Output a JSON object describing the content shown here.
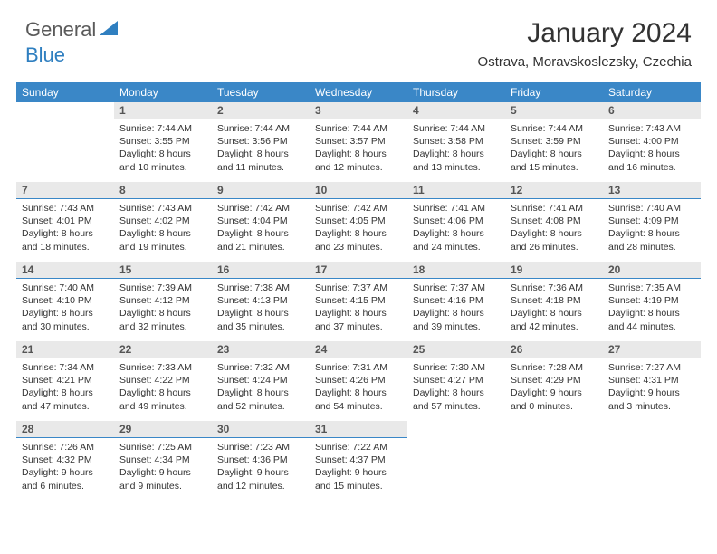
{
  "logo": {
    "text1": "General",
    "text2": "Blue"
  },
  "title": "January 2024",
  "location": "Ostrava, Moravskoslezsky, Czechia",
  "colors": {
    "header_bg": "#3a87c7",
    "header_text": "#ffffff",
    "daynum_bg": "#e9e9e9",
    "daynum_border": "#3a87c7",
    "page_bg": "#ffffff",
    "logo_gray": "#5a5a5a",
    "logo_blue": "#2f7fc0",
    "body_text": "#333333"
  },
  "weekdays": [
    "Sunday",
    "Monday",
    "Tuesday",
    "Wednesday",
    "Thursday",
    "Friday",
    "Saturday"
  ],
  "weeks": [
    [
      null,
      {
        "n": "1",
        "sr": "Sunrise: 7:44 AM",
        "ss": "Sunset: 3:55 PM",
        "d1": "Daylight: 8 hours",
        "d2": "and 10 minutes."
      },
      {
        "n": "2",
        "sr": "Sunrise: 7:44 AM",
        "ss": "Sunset: 3:56 PM",
        "d1": "Daylight: 8 hours",
        "d2": "and 11 minutes."
      },
      {
        "n": "3",
        "sr": "Sunrise: 7:44 AM",
        "ss": "Sunset: 3:57 PM",
        "d1": "Daylight: 8 hours",
        "d2": "and 12 minutes."
      },
      {
        "n": "4",
        "sr": "Sunrise: 7:44 AM",
        "ss": "Sunset: 3:58 PM",
        "d1": "Daylight: 8 hours",
        "d2": "and 13 minutes."
      },
      {
        "n": "5",
        "sr": "Sunrise: 7:44 AM",
        "ss": "Sunset: 3:59 PM",
        "d1": "Daylight: 8 hours",
        "d2": "and 15 minutes."
      },
      {
        "n": "6",
        "sr": "Sunrise: 7:43 AM",
        "ss": "Sunset: 4:00 PM",
        "d1": "Daylight: 8 hours",
        "d2": "and 16 minutes."
      }
    ],
    [
      {
        "n": "7",
        "sr": "Sunrise: 7:43 AM",
        "ss": "Sunset: 4:01 PM",
        "d1": "Daylight: 8 hours",
        "d2": "and 18 minutes."
      },
      {
        "n": "8",
        "sr": "Sunrise: 7:43 AM",
        "ss": "Sunset: 4:02 PM",
        "d1": "Daylight: 8 hours",
        "d2": "and 19 minutes."
      },
      {
        "n": "9",
        "sr": "Sunrise: 7:42 AM",
        "ss": "Sunset: 4:04 PM",
        "d1": "Daylight: 8 hours",
        "d2": "and 21 minutes."
      },
      {
        "n": "10",
        "sr": "Sunrise: 7:42 AM",
        "ss": "Sunset: 4:05 PM",
        "d1": "Daylight: 8 hours",
        "d2": "and 23 minutes."
      },
      {
        "n": "11",
        "sr": "Sunrise: 7:41 AM",
        "ss": "Sunset: 4:06 PM",
        "d1": "Daylight: 8 hours",
        "d2": "and 24 minutes."
      },
      {
        "n": "12",
        "sr": "Sunrise: 7:41 AM",
        "ss": "Sunset: 4:08 PM",
        "d1": "Daylight: 8 hours",
        "d2": "and 26 minutes."
      },
      {
        "n": "13",
        "sr": "Sunrise: 7:40 AM",
        "ss": "Sunset: 4:09 PM",
        "d1": "Daylight: 8 hours",
        "d2": "and 28 minutes."
      }
    ],
    [
      {
        "n": "14",
        "sr": "Sunrise: 7:40 AM",
        "ss": "Sunset: 4:10 PM",
        "d1": "Daylight: 8 hours",
        "d2": "and 30 minutes."
      },
      {
        "n": "15",
        "sr": "Sunrise: 7:39 AM",
        "ss": "Sunset: 4:12 PM",
        "d1": "Daylight: 8 hours",
        "d2": "and 32 minutes."
      },
      {
        "n": "16",
        "sr": "Sunrise: 7:38 AM",
        "ss": "Sunset: 4:13 PM",
        "d1": "Daylight: 8 hours",
        "d2": "and 35 minutes."
      },
      {
        "n": "17",
        "sr": "Sunrise: 7:37 AM",
        "ss": "Sunset: 4:15 PM",
        "d1": "Daylight: 8 hours",
        "d2": "and 37 minutes."
      },
      {
        "n": "18",
        "sr": "Sunrise: 7:37 AM",
        "ss": "Sunset: 4:16 PM",
        "d1": "Daylight: 8 hours",
        "d2": "and 39 minutes."
      },
      {
        "n": "19",
        "sr": "Sunrise: 7:36 AM",
        "ss": "Sunset: 4:18 PM",
        "d1": "Daylight: 8 hours",
        "d2": "and 42 minutes."
      },
      {
        "n": "20",
        "sr": "Sunrise: 7:35 AM",
        "ss": "Sunset: 4:19 PM",
        "d1": "Daylight: 8 hours",
        "d2": "and 44 minutes."
      }
    ],
    [
      {
        "n": "21",
        "sr": "Sunrise: 7:34 AM",
        "ss": "Sunset: 4:21 PM",
        "d1": "Daylight: 8 hours",
        "d2": "and 47 minutes."
      },
      {
        "n": "22",
        "sr": "Sunrise: 7:33 AM",
        "ss": "Sunset: 4:22 PM",
        "d1": "Daylight: 8 hours",
        "d2": "and 49 minutes."
      },
      {
        "n": "23",
        "sr": "Sunrise: 7:32 AM",
        "ss": "Sunset: 4:24 PM",
        "d1": "Daylight: 8 hours",
        "d2": "and 52 minutes."
      },
      {
        "n": "24",
        "sr": "Sunrise: 7:31 AM",
        "ss": "Sunset: 4:26 PM",
        "d1": "Daylight: 8 hours",
        "d2": "and 54 minutes."
      },
      {
        "n": "25",
        "sr": "Sunrise: 7:30 AM",
        "ss": "Sunset: 4:27 PM",
        "d1": "Daylight: 8 hours",
        "d2": "and 57 minutes."
      },
      {
        "n": "26",
        "sr": "Sunrise: 7:28 AM",
        "ss": "Sunset: 4:29 PM",
        "d1": "Daylight: 9 hours",
        "d2": "and 0 minutes."
      },
      {
        "n": "27",
        "sr": "Sunrise: 7:27 AM",
        "ss": "Sunset: 4:31 PM",
        "d1": "Daylight: 9 hours",
        "d2": "and 3 minutes."
      }
    ],
    [
      {
        "n": "28",
        "sr": "Sunrise: 7:26 AM",
        "ss": "Sunset: 4:32 PM",
        "d1": "Daylight: 9 hours",
        "d2": "and 6 minutes."
      },
      {
        "n": "29",
        "sr": "Sunrise: 7:25 AM",
        "ss": "Sunset: 4:34 PM",
        "d1": "Daylight: 9 hours",
        "d2": "and 9 minutes."
      },
      {
        "n": "30",
        "sr": "Sunrise: 7:23 AM",
        "ss": "Sunset: 4:36 PM",
        "d1": "Daylight: 9 hours",
        "d2": "and 12 minutes."
      },
      {
        "n": "31",
        "sr": "Sunrise: 7:22 AM",
        "ss": "Sunset: 4:37 PM",
        "d1": "Daylight: 9 hours",
        "d2": "and 15 minutes."
      },
      null,
      null,
      null
    ]
  ]
}
